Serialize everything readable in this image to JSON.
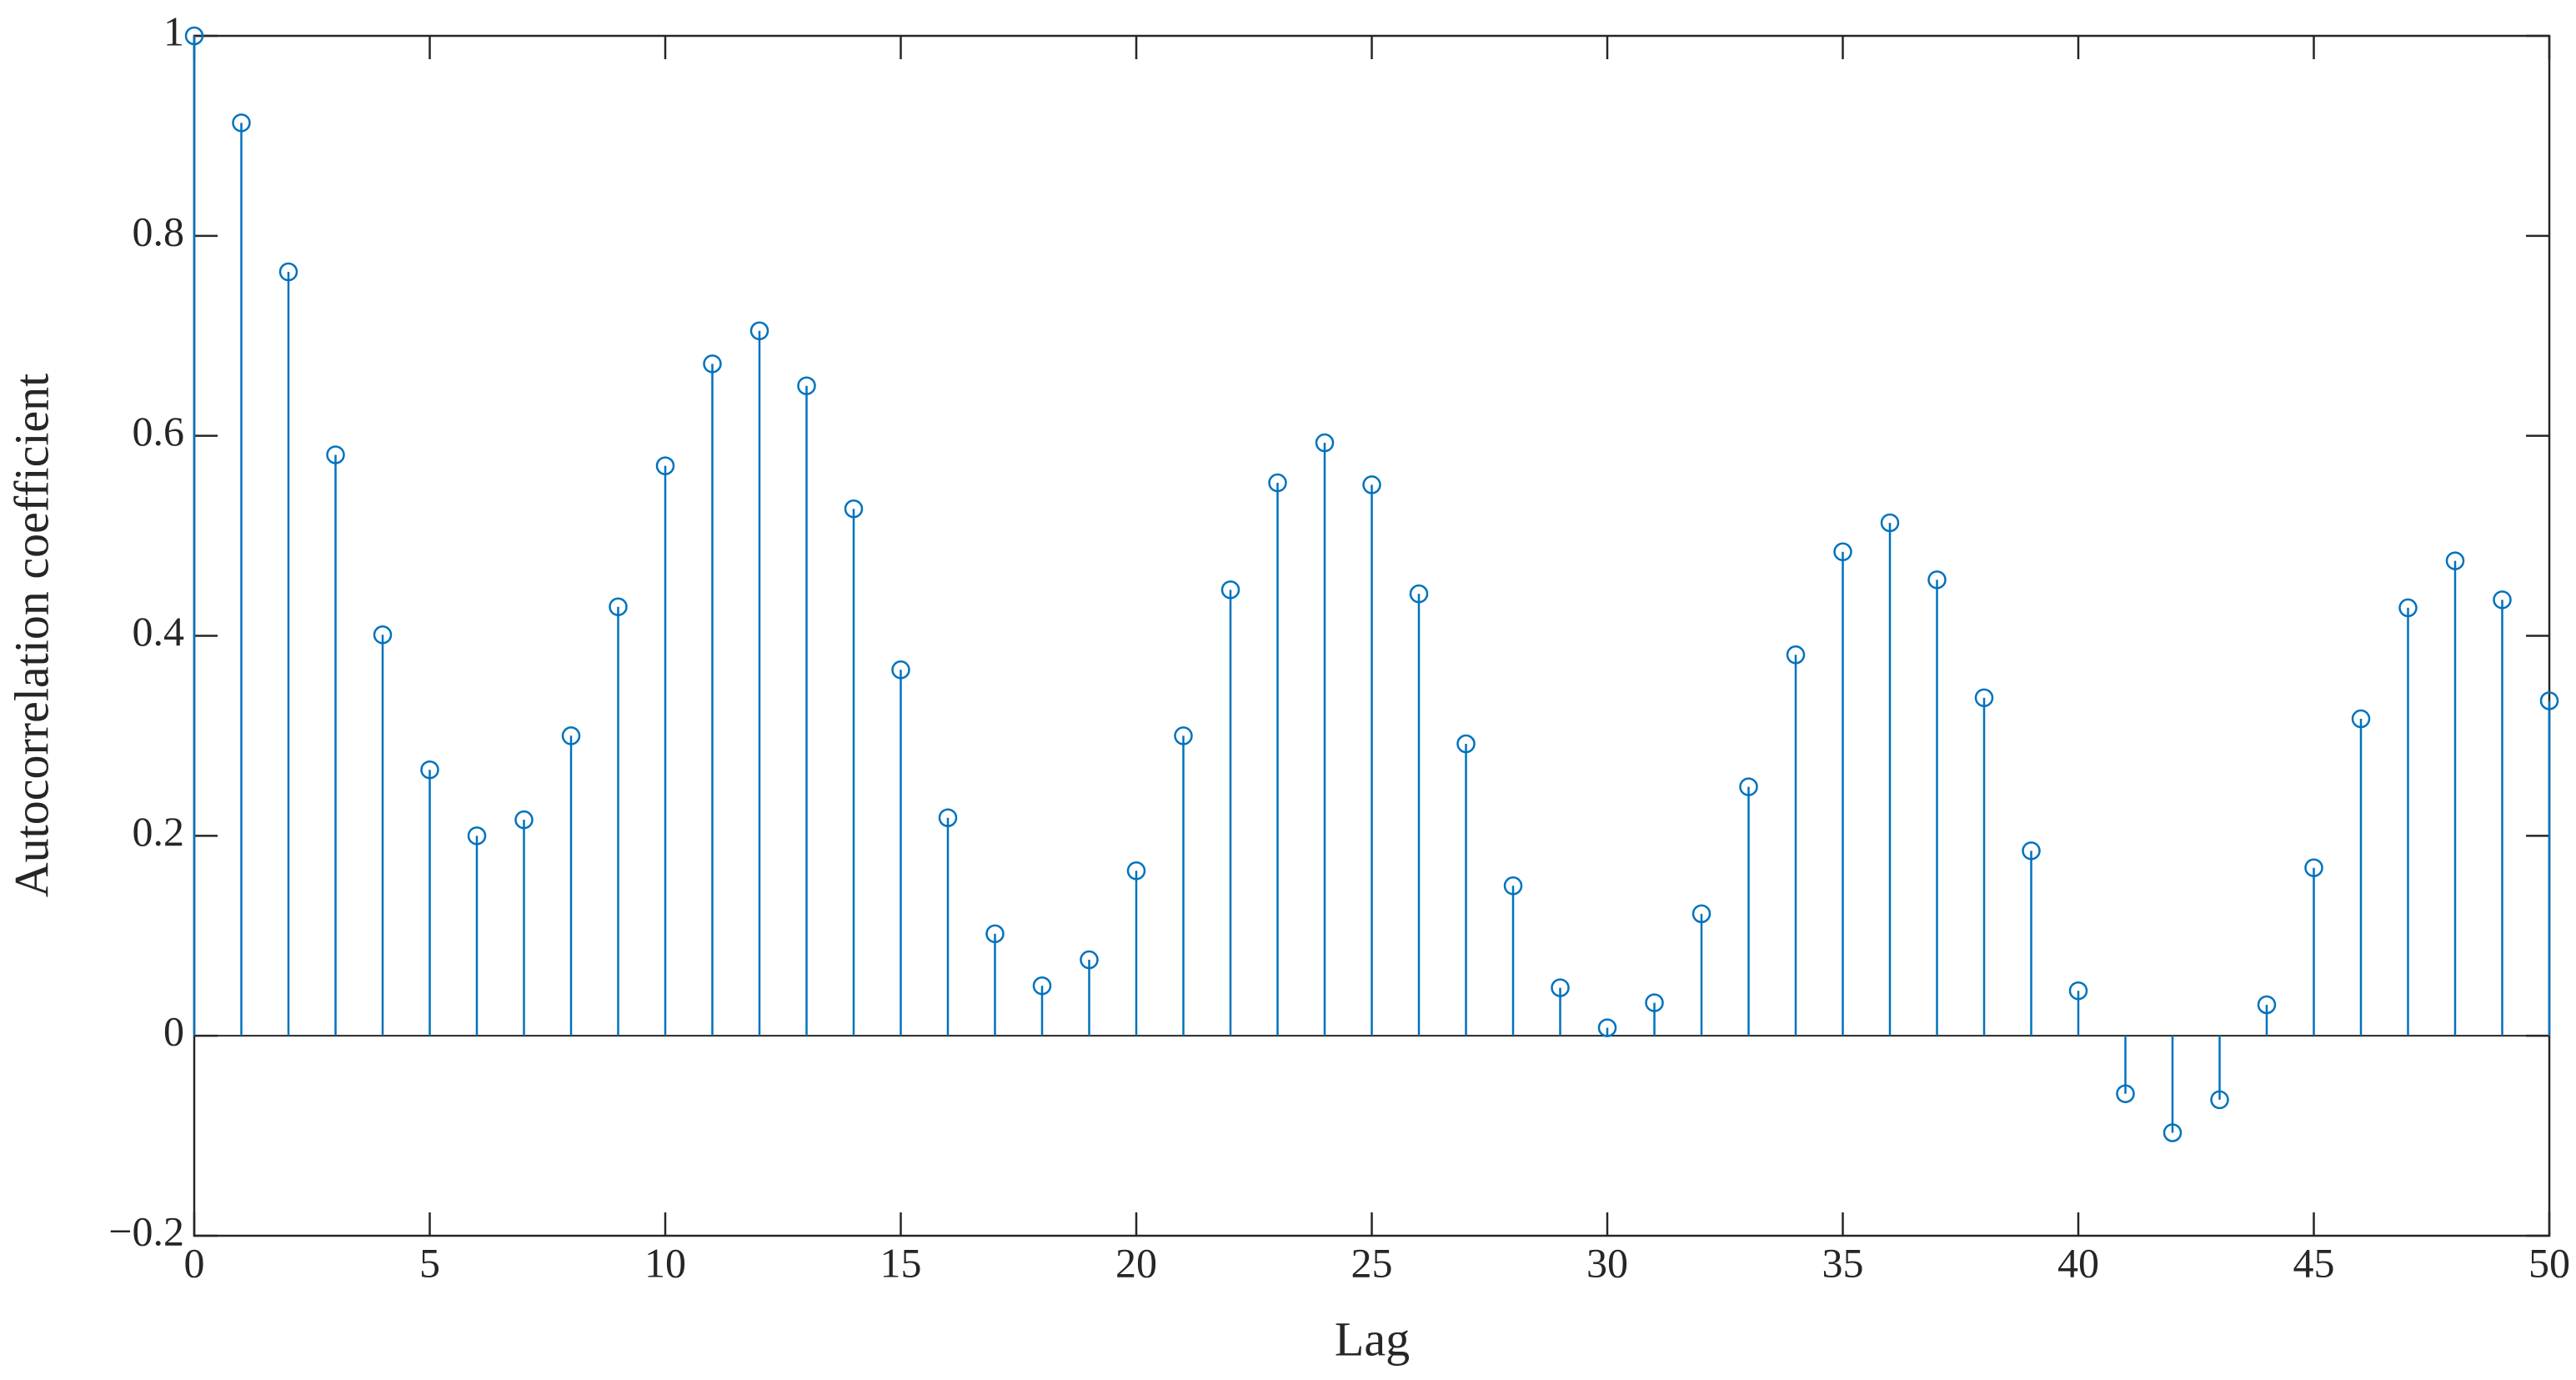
{
  "chart_data": {
    "type": "stem",
    "xlabel": "Lag",
    "ylabel": "Autocorrelation  coefficient",
    "color": "#0072bd",
    "x": [
      0,
      1,
      2,
      3,
      4,
      5,
      6,
      7,
      8,
      9,
      10,
      11,
      12,
      13,
      14,
      15,
      16,
      17,
      18,
      19,
      20,
      21,
      22,
      23,
      24,
      25,
      26,
      27,
      28,
      29,
      30,
      31,
      32,
      33,
      34,
      35,
      36,
      37,
      38,
      39,
      40,
      41,
      42,
      43,
      44,
      45,
      46,
      47,
      48,
      49,
      50
    ],
    "values": [
      1,
      0.913,
      0.764,
      0.581,
      0.401,
      0.266,
      0.2,
      0.216,
      0.3,
      0.429,
      0.57,
      0.672,
      0.705,
      0.65,
      0.527,
      0.366,
      0.218,
      0.102,
      0.05,
      0.076,
      0.165,
      0.3,
      0.446,
      0.553,
      0.593,
      0.551,
      0.442,
      0.292,
      0.15,
      0.048,
      0.008,
      0.033,
      0.122,
      0.249,
      0.381,
      0.484,
      0.513,
      0.456,
      0.338,
      0.185,
      0.045,
      -0.058,
      -0.097,
      -0.064,
      0.031,
      0.168,
      0.317,
      0.428,
      0.475,
      0.436,
      0.335
    ],
    "xlim": [
      0,
      50
    ],
    "xticks": [
      0,
      5,
      10,
      15,
      20,
      25,
      30,
      35,
      40,
      45,
      50
    ],
    "ylim": [
      -0.2,
      1
    ],
    "yticks": [
      {
        "value": -0.2,
        "label": "−0.2"
      },
      0,
      0.2,
      0.4,
      0.6,
      0.8,
      1
    ],
    "grid": false,
    "box": true
  }
}
